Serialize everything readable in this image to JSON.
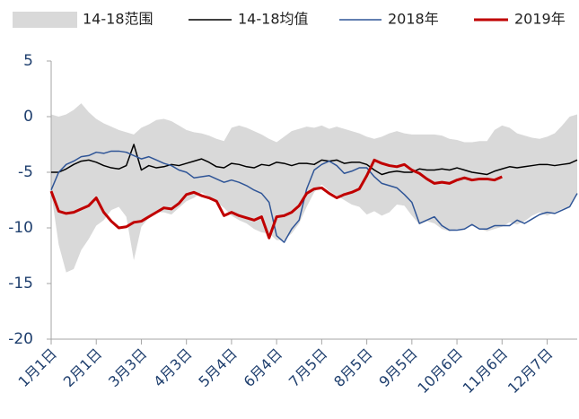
{
  "chart_data": {
    "type": "line",
    "categories": [
      "1月1日",
      null,
      null,
      null,
      null,
      null,
      "2月1日",
      null,
      null,
      null,
      null,
      null,
      "3月3日",
      null,
      null,
      null,
      null,
      null,
      "4月3日",
      null,
      null,
      null,
      null,
      null,
      "5月4日",
      null,
      null,
      null,
      null,
      null,
      "6月4日",
      null,
      null,
      null,
      null,
      null,
      "7月5日",
      null,
      null,
      null,
      null,
      null,
      "8月5日",
      null,
      null,
      null,
      null,
      null,
      "9月5日",
      null,
      null,
      null,
      null,
      null,
      "10月6日",
      null,
      null,
      null,
      null,
      null,
      "11月6日",
      null,
      null,
      null,
      null,
      null,
      "12月7日",
      null,
      null,
      null,
      null
    ],
    "band": {
      "name": "14-18范围",
      "color": "#d9d9d9",
      "high": [
        0.2,
        0.0,
        0.2,
        0.6,
        1.2,
        0.4,
        -0.2,
        -0.6,
        -0.9,
        -1.2,
        -1.4,
        -1.6,
        -1.0,
        -0.7,
        -0.3,
        -0.2,
        -0.4,
        -0.8,
        -1.2,
        -1.4,
        -1.5,
        -1.7,
        -2.0,
        -2.2,
        -1.0,
        -0.8,
        -1.0,
        -1.3,
        -1.6,
        -2.0,
        -2.3,
        -1.8,
        -1.3,
        -1.1,
        -0.9,
        -1.0,
        -0.8,
        -1.1,
        -0.9,
        -1.1,
        -1.3,
        -1.5,
        -1.8,
        -2.0,
        -1.8,
        -1.5,
        -1.3,
        -1.5,
        -1.6,
        -1.6,
        -1.6,
        -1.6,
        -1.7,
        -2.0,
        -2.1,
        -2.3,
        -2.3,
        -2.2,
        -2.2,
        -1.2,
        -0.8,
        -1.0,
        -1.5,
        -1.7,
        -1.9,
        -2.0,
        -1.8,
        -1.5,
        -0.8,
        0.0,
        0.2
      ],
      "low": [
        -6.8,
        -11.5,
        -14.0,
        -13.7,
        -12.0,
        -11.0,
        -9.8,
        -9.3,
        -8.4,
        -8.1,
        -9.0,
        -12.9,
        -9.9,
        -9.1,
        -8.6,
        -8.6,
        -8.8,
        -8.2,
        -7.6,
        -7.3,
        -6.8,
        -7.2,
        -7.7,
        -8.2,
        -8.9,
        -9.3,
        -9.6,
        -10.1,
        -10.4,
        -10.5,
        -11.1,
        -11.1,
        -10.5,
        -9.6,
        -8.1,
        -6.8,
        -6.1,
        -6.7,
        -7.1,
        -7.5,
        -7.9,
        -8.1,
        -8.8,
        -8.5,
        -8.9,
        -8.6,
        -7.9,
        -8.0,
        -8.9,
        -9.7,
        -9.4,
        -9.6,
        -10.1,
        -10.3,
        -10.1,
        -10.1,
        -9.8,
        -10.1,
        -10.3,
        -10.1,
        -9.9,
        -9.5,
        -9.7,
        -9.4,
        -8.9,
        -8.6,
        -8.9,
        -8.6,
        -8.3,
        -8.1,
        -6.9
      ]
    },
    "series": [
      {
        "name": "14-18均值",
        "color": "#000000",
        "width": 1.5,
        "values": [
          -5.0,
          -5.0,
          -4.7,
          -4.3,
          -4.0,
          -3.9,
          -4.1,
          -4.4,
          -4.6,
          -4.7,
          -4.4,
          -2.5,
          -4.8,
          -4.4,
          -4.6,
          -4.5,
          -4.3,
          -4.4,
          -4.2,
          -4.0,
          -3.8,
          -4.1,
          -4.5,
          -4.6,
          -4.2,
          -4.3,
          -4.5,
          -4.6,
          -4.3,
          -4.4,
          -4.1,
          -4.2,
          -4.4,
          -4.2,
          -4.2,
          -4.3,
          -3.9,
          -4.0,
          -3.9,
          -4.2,
          -4.1,
          -4.1,
          -4.3,
          -4.8,
          -5.2,
          -5.0,
          -4.9,
          -5.0,
          -5.0,
          -4.7,
          -4.8,
          -4.8,
          -4.7,
          -4.8,
          -4.6,
          -4.8,
          -5.0,
          -5.1,
          -5.2,
          -4.9,
          -4.7,
          -4.5,
          -4.6,
          -4.5,
          -4.4,
          -4.3,
          -4.3,
          -4.4,
          -4.3,
          -4.2,
          -3.9
        ]
      },
      {
        "name": "2018年",
        "color": "#2f5597",
        "width": 1.5,
        "values": [
          -6.6,
          -5.0,
          -4.3,
          -4.0,
          -3.6,
          -3.5,
          -3.2,
          -3.3,
          -3.1,
          -3.1,
          -3.2,
          -3.5,
          -3.8,
          -3.6,
          -3.9,
          -4.2,
          -4.4,
          -4.8,
          -5.0,
          -5.5,
          -5.4,
          -5.3,
          -5.6,
          -5.9,
          -5.7,
          -5.9,
          -6.2,
          -6.6,
          -6.9,
          -7.7,
          -10.7,
          -11.3,
          -10.1,
          -9.3,
          -6.5,
          -4.8,
          -4.3,
          -4.0,
          -4.4,
          -5.1,
          -4.9,
          -4.6,
          -4.6,
          -5.4,
          -6.0,
          -6.2,
          -6.4,
          -7.0,
          -7.7,
          -9.6,
          -9.3,
          -9.0,
          -9.8,
          -10.2,
          -10.2,
          -10.1,
          -9.7,
          -10.1,
          -10.1,
          -9.8,
          -9.8,
          -9.8,
          -9.3,
          -9.6,
          -9.2,
          -8.8,
          -8.6,
          -8.7,
          -8.4,
          -8.1,
          -6.9
        ]
      },
      {
        "name": "2019年",
        "color": "#c00000",
        "width": 3,
        "values": [
          -6.7,
          -8.5,
          -8.7,
          -8.6,
          -8.3,
          -8.0,
          -7.3,
          -8.6,
          -9.4,
          -10.0,
          -9.9,
          -9.5,
          -9.4,
          -9.0,
          -8.6,
          -8.2,
          -8.3,
          -7.8,
          -7.0,
          -6.8,
          -7.1,
          -7.3,
          -7.6,
          -8.9,
          -8.6,
          -8.9,
          -9.1,
          -9.3,
          -9.0,
          -10.9,
          -9.0,
          -8.9,
          -8.6,
          -8.0,
          -6.9,
          -6.5,
          -6.4,
          -6.9,
          -7.3,
          -7.0,
          -6.8,
          -6.5,
          -5.3,
          -3.9,
          -4.2,
          -4.4,
          -4.5,
          -4.3,
          -4.8,
          -5.1,
          -5.6,
          -6.0,
          -5.9,
          -6.0,
          -5.7,
          -5.5,
          -5.7,
          -5.6,
          -5.6,
          -5.7,
          -5.4,
          null,
          null,
          null,
          null,
          null,
          null,
          null,
          null,
          null,
          null
        ]
      }
    ],
    "ylim": [
      -20,
      5
    ],
    "yticks": [
      -20,
      -15,
      -10,
      -5,
      0,
      5
    ]
  }
}
